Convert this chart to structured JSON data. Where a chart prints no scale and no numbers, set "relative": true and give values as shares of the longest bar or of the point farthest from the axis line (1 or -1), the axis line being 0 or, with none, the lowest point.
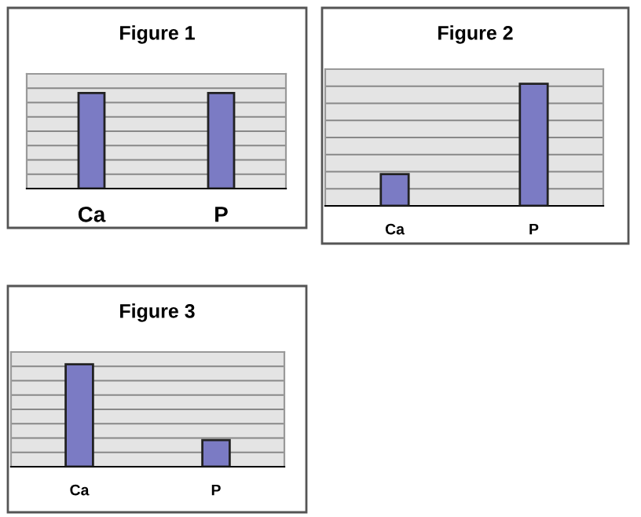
{
  "chart_data": [
    {
      "type": "bar",
      "title": "Figure 1",
      "categories": [
        "Ca",
        "P"
      ],
      "values": [
        1,
        1
      ],
      "color": "#7b7bc4",
      "relative": true,
      "grid": "y",
      "tick_labels": "x"
    },
    {
      "type": "bar",
      "title": "Figure 2",
      "categories": [
        "Ca",
        "P"
      ],
      "values": [
        0.26,
        1
      ],
      "color": "#7b7bc4",
      "relative": true,
      "grid": "y",
      "tick_labels": "x"
    },
    {
      "type": "bar",
      "title": "Figure 3",
      "categories": [
        "Ca",
        "P"
      ],
      "values": [
        1,
        0.26
      ],
      "color": "#7b7bc4",
      "relative": true,
      "grid": "y",
      "tick_labels": "x"
    }
  ]
}
